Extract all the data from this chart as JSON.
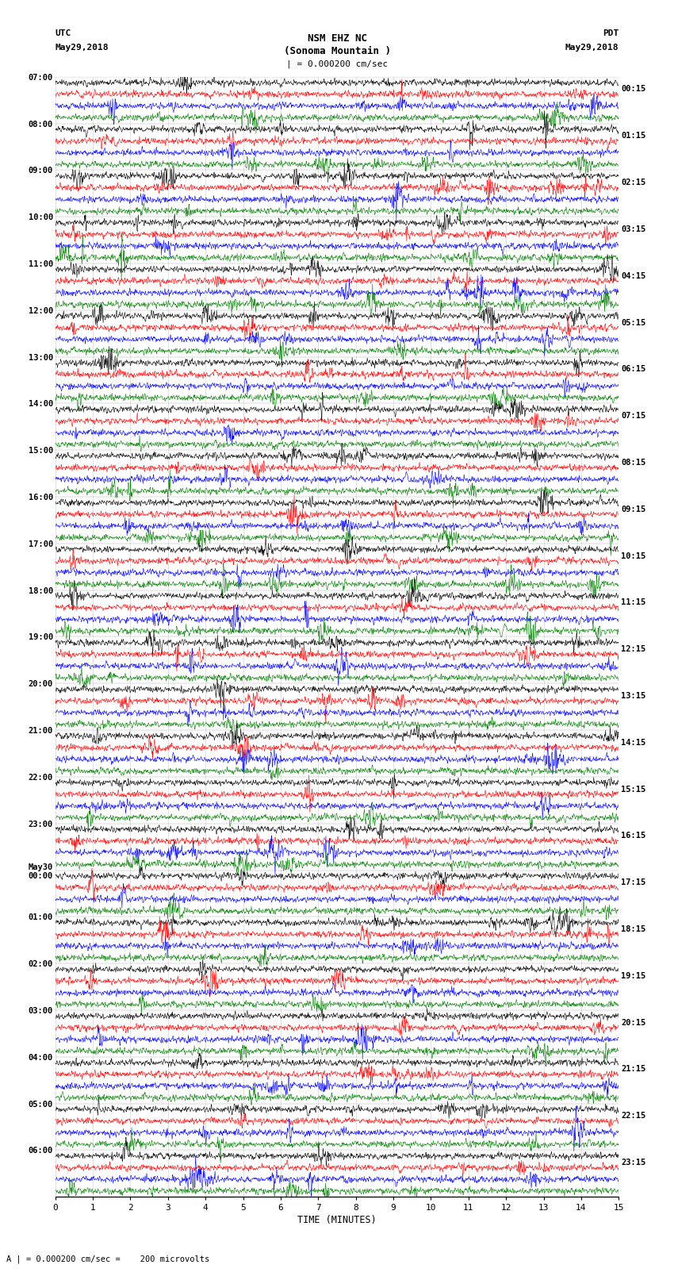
{
  "title_line1": "NSM EHZ NC",
  "title_line2": "(Sonoma Mountain )",
  "title_scale": "| = 0.000200 cm/sec",
  "label_left_top": "UTC",
  "label_left_date": "May29,2018",
  "label_right_top": "PDT",
  "label_right_date": "May29,2018",
  "left_times": [
    "07:00",
    "08:00",
    "09:00",
    "10:00",
    "11:00",
    "12:00",
    "13:00",
    "14:00",
    "15:00",
    "16:00",
    "17:00",
    "18:00",
    "19:00",
    "20:00",
    "21:00",
    "22:00",
    "23:00",
    "May30\n00:00",
    "01:00",
    "02:00",
    "03:00",
    "04:00",
    "05:00",
    "06:00"
  ],
  "right_times": [
    "00:15",
    "01:15",
    "02:15",
    "03:15",
    "04:15",
    "05:15",
    "06:15",
    "07:15",
    "08:15",
    "09:15",
    "10:15",
    "11:15",
    "12:15",
    "13:15",
    "14:15",
    "15:15",
    "16:15",
    "17:15",
    "18:15",
    "19:15",
    "20:15",
    "21:15",
    "22:15",
    "23:15"
  ],
  "colors": [
    "black",
    "red",
    "blue",
    "green"
  ],
  "n_rows": 24,
  "traces_per_row": 4,
  "xlabel": "TIME (MINUTES)",
  "xlabel_ticks": [
    0,
    1,
    2,
    3,
    4,
    5,
    6,
    7,
    8,
    9,
    10,
    11,
    12,
    13,
    14,
    15
  ],
  "footer_text": "A | = 0.000200 cm/sec =    200 microvolts",
  "bg_color": "#ffffff",
  "trace_color_order": [
    "black",
    "red",
    "blue",
    "green"
  ],
  "noise_seed": 42,
  "linewidth": 0.4
}
